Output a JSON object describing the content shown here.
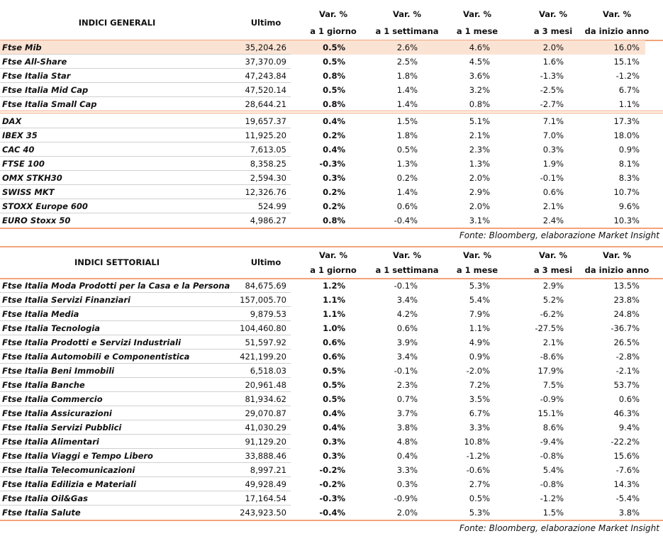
{
  "tables": [
    {
      "title": "INDICI GENERALI",
      "columns": [
        {
          "label": "Ultimo"
        },
        {
          "top": "Var. %",
          "bottom": "a 1 giorno"
        },
        {
          "top": "Var. %",
          "bottom": "a 1 settimana"
        },
        {
          "top": "Var. %",
          "bottom": "a 1 mese"
        },
        {
          "top": "Var. %",
          "bottom": "a 3 mesi"
        },
        {
          "top": "Var. %",
          "bottom": "da inizio anno"
        }
      ],
      "row_groups": [
        [
          [
            "Ftse Mib",
            "35,204.26",
            "0.5%",
            "2.6%",
            "4.6%",
            "2.0%",
            "16.0%"
          ],
          [
            "Ftse All-Share",
            "37,370.09",
            "0.5%",
            "2.5%",
            "4.5%",
            "1.6%",
            "15.1%"
          ],
          [
            "Ftse Italia Star",
            "47,243.84",
            "0.8%",
            "1.8%",
            "3.6%",
            "-1.3%",
            "-1.2%"
          ],
          [
            "Ftse Italia Mid Cap",
            "47,520.14",
            "0.5%",
            "1.4%",
            "3.2%",
            "-2.5%",
            "6.7%"
          ],
          [
            "Ftse Italia Small Cap",
            "28,644.21",
            "0.8%",
            "1.4%",
            "0.8%",
            "-2.7%",
            "1.1%"
          ]
        ],
        [
          [
            "DAX",
            "19,657.37",
            "0.4%",
            "1.5%",
            "5.1%",
            "7.1%",
            "17.3%"
          ],
          [
            "IBEX 35",
            "11,925.20",
            "0.2%",
            "1.8%",
            "2.1%",
            "7.0%",
            "18.0%"
          ],
          [
            "CAC 40",
            "7,613.05",
            "0.4%",
            "0.5%",
            "2.3%",
            "0.3%",
            "0.9%"
          ],
          [
            "FTSE 100",
            "8,358.25",
            "-0.3%",
            "1.3%",
            "1.3%",
            "1.9%",
            "8.1%"
          ],
          [
            "OMX STKH30",
            "2,594.30",
            "0.3%",
            "0.2%",
            "2.0%",
            "-0.1%",
            "8.3%"
          ],
          [
            "SWISS MKT",
            "12,326.76",
            "0.2%",
            "1.4%",
            "2.9%",
            "0.6%",
            "10.7%"
          ],
          [
            "STOXX Europe 600",
            "524.99",
            "0.2%",
            "0.6%",
            "2.0%",
            "2.1%",
            "9.6%"
          ],
          [
            "EURO Stoxx 50",
            "4,986.27",
            "0.8%",
            "-0.4%",
            "3.1%",
            "2.4%",
            "10.3%"
          ]
        ]
      ],
      "source": "Fonte: Bloomberg, elaborazione Market Insight"
    },
    {
      "title": "INDICI SETTORIALI",
      "columns": [
        {
          "label": "Ultimo"
        },
        {
          "top": "Var. %",
          "bottom": "a 1 giorno"
        },
        {
          "top": "Var. %",
          "bottom": "a 1 settimana"
        },
        {
          "top": "Var. %",
          "bottom": "a 1 mese"
        },
        {
          "top": "Var. %",
          "bottom": "a 3 mesi"
        },
        {
          "top": "Var. %",
          "bottom": "da inizio anno"
        }
      ],
      "row_groups": [
        [
          [
            "Ftse Italia Moda Prodotti per la Casa e la Persona",
            "84,675.69",
            "1.2%",
            "-0.1%",
            "5.3%",
            "2.9%",
            "13.5%"
          ],
          [
            "Ftse Italia Servizi Finanziari",
            "157,005.70",
            "1.1%",
            "3.4%",
            "5.4%",
            "5.2%",
            "23.8%"
          ],
          [
            "Ftse Italia Media",
            "9,879.53",
            "1.1%",
            "4.2%",
            "7.9%",
            "-6.2%",
            "24.8%"
          ],
          [
            "Ftse Italia Tecnologia",
            "104,460.80",
            "1.0%",
            "0.6%",
            "1.1%",
            "-27.5%",
            "-36.7%"
          ],
          [
            "Ftse Italia Prodotti e Servizi Industriali",
            "51,597.92",
            "0.6%",
            "3.9%",
            "4.9%",
            "2.1%",
            "26.5%"
          ],
          [
            "Ftse Italia Automobili e Componentistica",
            "421,199.20",
            "0.6%",
            "3.4%",
            "0.9%",
            "-8.6%",
            "-2.8%"
          ],
          [
            "Ftse Italia Beni Immobili",
            "6,518.03",
            "0.5%",
            "-0.1%",
            "-2.0%",
            "17.9%",
            "-2.1%"
          ],
          [
            "Ftse Italia Banche",
            "20,961.48",
            "0.5%",
            "2.3%",
            "7.2%",
            "7.5%",
            "53.7%"
          ],
          [
            "Ftse Italia Commercio",
            "81,934.62",
            "0.5%",
            "0.7%",
            "3.5%",
            "-0.9%",
            "0.6%"
          ],
          [
            "Ftse Italia Assicurazioni",
            "29,070.87",
            "0.4%",
            "3.7%",
            "6.7%",
            "15.1%",
            "46.3%"
          ],
          [
            "Ftse Italia Servizi Pubblici",
            "41,030.29",
            "0.4%",
            "3.8%",
            "3.3%",
            "8.6%",
            "9.4%"
          ],
          [
            "Ftse Italia Alimentari",
            "91,129.20",
            "0.3%",
            "4.8%",
            "10.8%",
            "-9.4%",
            "-22.2%"
          ],
          [
            "Ftse Italia Viaggi e Tempo Libero",
            "33,888.46",
            "0.3%",
            "0.4%",
            "-1.2%",
            "-0.8%",
            "15.6%"
          ],
          [
            "Ftse Italia Telecomunicazioni",
            "8,997.21",
            "-0.2%",
            "3.3%",
            "-0.6%",
            "5.4%",
            "-7.6%"
          ],
          [
            "Ftse Italia Edilizia e Materiali",
            "49,928.49",
            "-0.2%",
            "0.3%",
            "2.7%",
            "-0.8%",
            "14.3%"
          ],
          [
            "Ftse Italia Oil&Gas",
            "17,164.54",
            "-0.3%",
            "-0.9%",
            "0.5%",
            "-1.2%",
            "-5.4%"
          ],
          [
            "Ftse Italia Salute",
            "243,923.50",
            "-0.4%",
            "2.0%",
            "5.3%",
            "1.5%",
            "3.8%"
          ]
        ]
      ],
      "source": "Fonte: Bloomberg, elaborazione Market Insight"
    }
  ]
}
